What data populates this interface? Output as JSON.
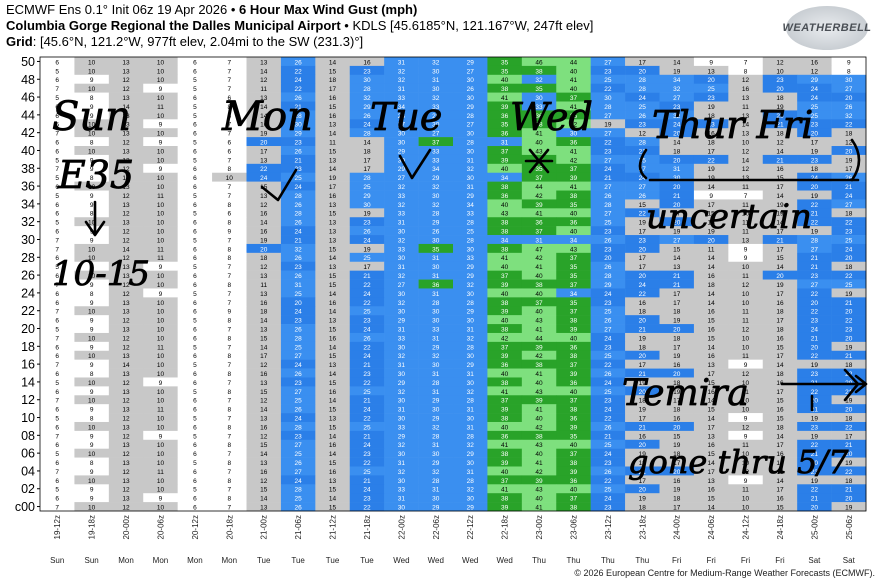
{
  "header": {
    "line1_prefix": "ECMWF Ens 0.1° Init 06z 19 Apr 2026 • ",
    "line1_bold": "6 Hour Max Wind Gust (mph)",
    "line2_bold": "Columbia Gorge Regional the Dalles Municipal Airport",
    "line2_rest": " • KDLS [45.6185°N, 121.167°W, 247ft elev]",
    "line3_bold": "Grid",
    "line3_rest": ": [45.6°N, 121.2°W, 977ft elev, 2.04mi to the SW (231.3)°]"
  },
  "logo": {
    "text": "WEATHERBELL"
  },
  "copyright": "© 2026 European Centre for Medium-Range Weather Forecasts (ECMWF).",
  "colors": {
    "lt10": "#ffffff",
    "10to20": "#c8c8c8",
    "20to25": "#2b7fe8",
    "25to35": "#3a8ff0",
    "35to40": "#29a329",
    "40plus": "#7ee07e",
    "55plus": "#ffe066",
    "annotation_ink": "#000000"
  },
  "chart_data": {
    "type": "heatmap",
    "title": "6 Hour Max Wind Gust (mph)",
    "ylabel": "",
    "xlabel": "",
    "y_tick_labels": [
      "50",
      "48",
      "46",
      "44",
      "42",
      "40",
      "38",
      "36",
      "34",
      "32",
      "30",
      "28",
      "26",
      "24",
      "22",
      "20",
      "18",
      "16",
      "14",
      "12",
      "10",
      "08",
      "06",
      "04",
      "02",
      "c00"
    ],
    "x_tick_labels": [
      "19-12z",
      "19-18z",
      "20-00z",
      "20-06z",
      "20-12z",
      "20-18z",
      "21-00z",
      "21-06z",
      "21-12z",
      "21-18z",
      "22-00z",
      "22-06z",
      "22-12z",
      "22-18z",
      "23-00z",
      "23-06z",
      "23-12z",
      "23-18z",
      "24-00z",
      "24-06z",
      "24-12z",
      "24-18z",
      "25-00z",
      "25-06z"
    ],
    "day_labels": [
      "Sun",
      "Sun",
      "Mon",
      "Mon",
      "Mon",
      "Mon",
      "Tue",
      "Tue",
      "Tue",
      "Tue",
      "Wed",
      "Wed",
      "Wed",
      "Wed",
      "Thu",
      "Thu",
      "Thu",
      "Thu",
      "Fri",
      "Fri",
      "Fri",
      "Fri",
      "Sat",
      "Sat"
    ],
    "members": [
      "50",
      "49",
      "48",
      "47",
      "46",
      "45",
      "44",
      "43",
      "42",
      "41",
      "40",
      "39",
      "38",
      "37",
      "36",
      "35",
      "34",
      "33",
      "32",
      "31",
      "30",
      "29",
      "28",
      "27",
      "26",
      "25",
      "24",
      "23",
      "22",
      "21",
      "20",
      "19",
      "18",
      "17",
      "16",
      "15",
      "14",
      "13",
      "12",
      "11",
      "10",
      "09",
      "08",
      "07",
      "06",
      "05",
      "04",
      "03",
      "02",
      "01",
      "c00"
    ],
    "values": [
      [
        6,
        10,
        13,
        10,
        6,
        7,
        13,
        26,
        14,
        16,
        31,
        32,
        29,
        35,
        46,
        44,
        27,
        17,
        14,
        9,
        7,
        12,
        16,
        9
      ],
      [
        5,
        10,
        13,
        10,
        6,
        7,
        14,
        22,
        15,
        23,
        32,
        30,
        27,
        35,
        38,
        40,
        23,
        20,
        19,
        13,
        8,
        10,
        12,
        8
      ],
      [
        6,
        9,
        12,
        10,
        5,
        7,
        12,
        24,
        18,
        30,
        32,
        31,
        30,
        40,
        32,
        41,
        25,
        28,
        34,
        20,
        12,
        23,
        29,
        30
      ],
      [
        7,
        10,
        12,
        9,
        5,
        7,
        11,
        22,
        17,
        28,
        31,
        30,
        26,
        38,
        35,
        40,
        22,
        28,
        32,
        25,
        16,
        20,
        24,
        27
      ],
      [
        5,
        8,
        13,
        10,
        6,
        6,
        13,
        26,
        16,
        32,
        33,
        32,
        30,
        41,
        30,
        37,
        30,
        24,
        27,
        23,
        13,
        18,
        24,
        20
      ],
      [
        6,
        9,
        14,
        11,
        5,
        8,
        14,
        21,
        15,
        29,
        34,
        33,
        29,
        39,
        33,
        41,
        28,
        25,
        23,
        19,
        11,
        19,
        25,
        26
      ],
      [
        6,
        9,
        13,
        10,
        5,
        6,
        14,
        28,
        16,
        26,
        28,
        29,
        28,
        36,
        36,
        35,
        27,
        26,
        32,
        18,
        13,
        20,
        25,
        32
      ],
      [
        5,
        10,
        13,
        9,
        6,
        7,
        16,
        30,
        13,
        24,
        27,
        30,
        27,
        35,
        38,
        42,
        19,
        23,
        24,
        23,
        14,
        21,
        23,
        22
      ],
      [
        7,
        10,
        13,
        10,
        6,
        7,
        19,
        29,
        14,
        28,
        30,
        27,
        30,
        36,
        41,
        30,
        27,
        12,
        20,
        16,
        13,
        18,
        20,
        18
      ],
      [
        6,
        8,
        12,
        9,
        5,
        6,
        20,
        23,
        11,
        14,
        30,
        37,
        28,
        31,
        40,
        36,
        22,
        28,
        14,
        18,
        10,
        12,
        17,
        12
      ],
      [
        6,
        10,
        13,
        10,
        6,
        6,
        17,
        26,
        15,
        18,
        29,
        33,
        30,
        37,
        43,
        41,
        23,
        21,
        18,
        17,
        12,
        14,
        19,
        20
      ],
      [
        5,
        9,
        13,
        10,
        5,
        7,
        13,
        21,
        13,
        17,
        30,
        33,
        31,
        39,
        38,
        42,
        27,
        25,
        20,
        22,
        14,
        21,
        23,
        19
      ],
      [
        7,
        9,
        12,
        9,
        6,
        8,
        22,
        23,
        14,
        17,
        29,
        34,
        32,
        40,
        35,
        37,
        24,
        27,
        31,
        19,
        12,
        16,
        18,
        17
      ],
      [
        5,
        8,
        14,
        10,
        6,
        10,
        24,
        25,
        19,
        28,
        27,
        29,
        30,
        34,
        37,
        39,
        21,
        24,
        30,
        19,
        13,
        15,
        24,
        26
      ],
      [
        6,
        10,
        13,
        10,
        6,
        7,
        15,
        24,
        17,
        25,
        32,
        32,
        31,
        38,
        44,
        41,
        27,
        27,
        20,
        14,
        11,
        17,
        20,
        21
      ],
      [
        5,
        9,
        12,
        11,
        5,
        7,
        13,
        28,
        16,
        29,
        33,
        30,
        29,
        36,
        42,
        38,
        26,
        26,
        21,
        9,
        7,
        14,
        19,
        24
      ],
      [
        6,
        9,
        13,
        10,
        6,
        8,
        12,
        26,
        13,
        30,
        32,
        32,
        34,
        40,
        39,
        35,
        28,
        15,
        20,
        17,
        11,
        19,
        22,
        27
      ],
      [
        6,
        8,
        12,
        10,
        5,
        6,
        16,
        28,
        15,
        19,
        33,
        28,
        33,
        43,
        41,
        40,
        27,
        22,
        17,
        15,
        10,
        19,
        21,
        18
      ],
      [
        5,
        10,
        13,
        10,
        6,
        8,
        14,
        26,
        13,
        23,
        31,
        29,
        28,
        38,
        36,
        36,
        25,
        19,
        20,
        13,
        11,
        14,
        22,
        22
      ],
      [
        6,
        9,
        12,
        10,
        6,
        9,
        16,
        24,
        13,
        26,
        30,
        26,
        25,
        38,
        37,
        40,
        23,
        17,
        19,
        19,
        11,
        17,
        19,
        23
      ],
      [
        7,
        9,
        12,
        10,
        5,
        7,
        19,
        21,
        13,
        24,
        32,
        30,
        28,
        34,
        31,
        34,
        26,
        23,
        27,
        20,
        13,
        21,
        28,
        25
      ],
      [
        7,
        10,
        14,
        11,
        6,
        8,
        20,
        32,
        15,
        19,
        33,
        35,
        30,
        38,
        47,
        43,
        23,
        20,
        15,
        11,
        9,
        17,
        27,
        24
      ],
      [
        6,
        10,
        12,
        11,
        6,
        8,
        18,
        26,
        14,
        25,
        30,
        31,
        33,
        41,
        42,
        37,
        20,
        17,
        14,
        14,
        9,
        15,
        21,
        20
      ],
      [
        5,
        9,
        13,
        9,
        5,
        7,
        12,
        23,
        13,
        17,
        31,
        30,
        29,
        40,
        41,
        35,
        26,
        17,
        13,
        14,
        10,
        14,
        21,
        18
      ],
      [
        6,
        10,
        13,
        10,
        6,
        7,
        13,
        26,
        15,
        21,
        32,
        31,
        29,
        37,
        40,
        35,
        28,
        20,
        21,
        16,
        11,
        20,
        23,
        22
      ],
      [
        7,
        9,
        12,
        10,
        6,
        8,
        11,
        31,
        15,
        22,
        27,
        36,
        32,
        39,
        38,
        37,
        29,
        24,
        21,
        18,
        12,
        19,
        27,
        25
      ],
      [
        6,
        8,
        12,
        9,
        5,
        7,
        13,
        25,
        14,
        24,
        30,
        31,
        30,
        40,
        40,
        34,
        24,
        22,
        17,
        14,
        10,
        17,
        22,
        19
      ],
      [
        6,
        9,
        13,
        10,
        6,
        7,
        16,
        20,
        16,
        22,
        32,
        28,
        28,
        38,
        37,
        35,
        23,
        16,
        17,
        14,
        10,
        16,
        20,
        21
      ],
      [
        7,
        10,
        13,
        10,
        6,
        9,
        18,
        24,
        14,
        25,
        30,
        30,
        29,
        39,
        40,
        37,
        25,
        18,
        18,
        16,
        11,
        18,
        22,
        20
      ],
      [
        6,
        9,
        12,
        10,
        5,
        8,
        14,
        23,
        13,
        23,
        29,
        30,
        30,
        40,
        43,
        38,
        26,
        20,
        19,
        15,
        11,
        17,
        23,
        22
      ],
      [
        5,
        9,
        13,
        10,
        6,
        7,
        13,
        26,
        15,
        24,
        31,
        33,
        31,
        38,
        41,
        39,
        27,
        21,
        20,
        16,
        12,
        18,
        24,
        23
      ],
      [
        7,
        10,
        12,
        10,
        6,
        8,
        15,
        28,
        16,
        26,
        33,
        31,
        32,
        42,
        44,
        40,
        24,
        19,
        18,
        15,
        10,
        16,
        21,
        20
      ],
      [
        6,
        9,
        12,
        11,
        5,
        7,
        14,
        25,
        14,
        22,
        30,
        29,
        28,
        37,
        39,
        36,
        23,
        18,
        17,
        14,
        10,
        15,
        20,
        19
      ],
      [
        6,
        10,
        13,
        10,
        6,
        8,
        17,
        27,
        15,
        24,
        32,
        32,
        30,
        39,
        42,
        38,
        25,
        20,
        19,
        16,
        11,
        17,
        22,
        21
      ],
      [
        7,
        9,
        14,
        10,
        5,
        7,
        12,
        24,
        13,
        21,
        31,
        30,
        29,
        36,
        38,
        37,
        22,
        17,
        16,
        13,
        9,
        14,
        19,
        18
      ],
      [
        6,
        8,
        13,
        10,
        6,
        8,
        16,
        26,
        14,
        23,
        30,
        31,
        31,
        40,
        41,
        39,
        26,
        21,
        20,
        17,
        12,
        18,
        23,
        22
      ],
      [
        5,
        10,
        12,
        9,
        6,
        7,
        13,
        23,
        15,
        22,
        29,
        28,
        30,
        38,
        40,
        36,
        24,
        19,
        18,
        15,
        10,
        16,
        21,
        20
      ],
      [
        6,
        9,
        13,
        10,
        5,
        8,
        15,
        27,
        16,
        25,
        32,
        31,
        32,
        41,
        43,
        40,
        25,
        20,
        19,
        16,
        11,
        17,
        22,
        21
      ],
      [
        7,
        10,
        12,
        10,
        6,
        7,
        12,
        25,
        14,
        21,
        30,
        29,
        28,
        37,
        39,
        37,
        23,
        18,
        17,
        14,
        10,
        15,
        20,
        19
      ],
      [
        6,
        9,
        13,
        11,
        6,
        8,
        14,
        26,
        15,
        24,
        31,
        30,
        31,
        39,
        41,
        38,
        24,
        19,
        18,
        15,
        10,
        16,
        21,
        20
      ],
      [
        5,
        8,
        12,
        10,
        5,
        7,
        13,
        24,
        13,
        22,
        30,
        29,
        30,
        38,
        40,
        36,
        22,
        17,
        16,
        14,
        9,
        15,
        19,
        18
      ],
      [
        6,
        10,
        13,
        10,
        6,
        8,
        16,
        28,
        15,
        25,
        33,
        32,
        31,
        40,
        42,
        39,
        26,
        21,
        20,
        17,
        12,
        18,
        23,
        22
      ],
      [
        7,
        9,
        12,
        9,
        5,
        7,
        12,
        23,
        14,
        21,
        29,
        28,
        28,
        36,
        38,
        35,
        21,
        16,
        15,
        13,
        9,
        14,
        19,
        17
      ],
      [
        6,
        9,
        13,
        10,
        6,
        8,
        15,
        27,
        16,
        24,
        32,
        31,
        32,
        41,
        43,
        40,
        25,
        20,
        19,
        16,
        11,
        17,
        22,
        21
      ],
      [
        5,
        10,
        12,
        10,
        6,
        7,
        14,
        25,
        14,
        23,
        30,
        30,
        29,
        38,
        40,
        37,
        24,
        19,
        18,
        15,
        10,
        16,
        21,
        20
      ],
      [
        6,
        8,
        13,
        10,
        5,
        8,
        13,
        26,
        15,
        22,
        31,
        29,
        30,
        39,
        41,
        38,
        23,
        18,
        17,
        14,
        10,
        15,
        20,
        19
      ],
      [
        7,
        9,
        12,
        11,
        6,
        7,
        16,
        27,
        16,
        25,
        32,
        32,
        31,
        40,
        42,
        39,
        26,
        21,
        20,
        17,
        12,
        18,
        23,
        22
      ],
      [
        6,
        10,
        13,
        10,
        6,
        8,
        12,
        24,
        13,
        21,
        30,
        28,
        28,
        37,
        39,
        36,
        22,
        17,
        16,
        13,
        9,
        14,
        19,
        18
      ],
      [
        5,
        9,
        12,
        10,
        5,
        7,
        15,
        28,
        15,
        24,
        33,
        31,
        32,
        41,
        43,
        40,
        25,
        20,
        19,
        16,
        11,
        17,
        22,
        21
      ],
      [
        6,
        9,
        13,
        9,
        6,
        8,
        14,
        25,
        14,
        23,
        31,
        30,
        30,
        38,
        40,
        37,
        24,
        19,
        18,
        15,
        10,
        16,
        21,
        20
      ],
      [
        7,
        10,
        12,
        10,
        6,
        7,
        13,
        26,
        15,
        22,
        30,
        29,
        29,
        39,
        41,
        38,
        23,
        18,
        17,
        14,
        10,
        15,
        20,
        19
      ]
    ]
  },
  "annotations": {
    "sun": "Sun",
    "mon": "Mon",
    "tue": "Tue",
    "wed": "Wed",
    "thur_fri": "Thur Fri",
    "e35": "E35",
    "ten_fifteen": "10-15",
    "uncertain": "uncertain",
    "temira": "Temira",
    "gone_through": "gone thru 5/7"
  }
}
